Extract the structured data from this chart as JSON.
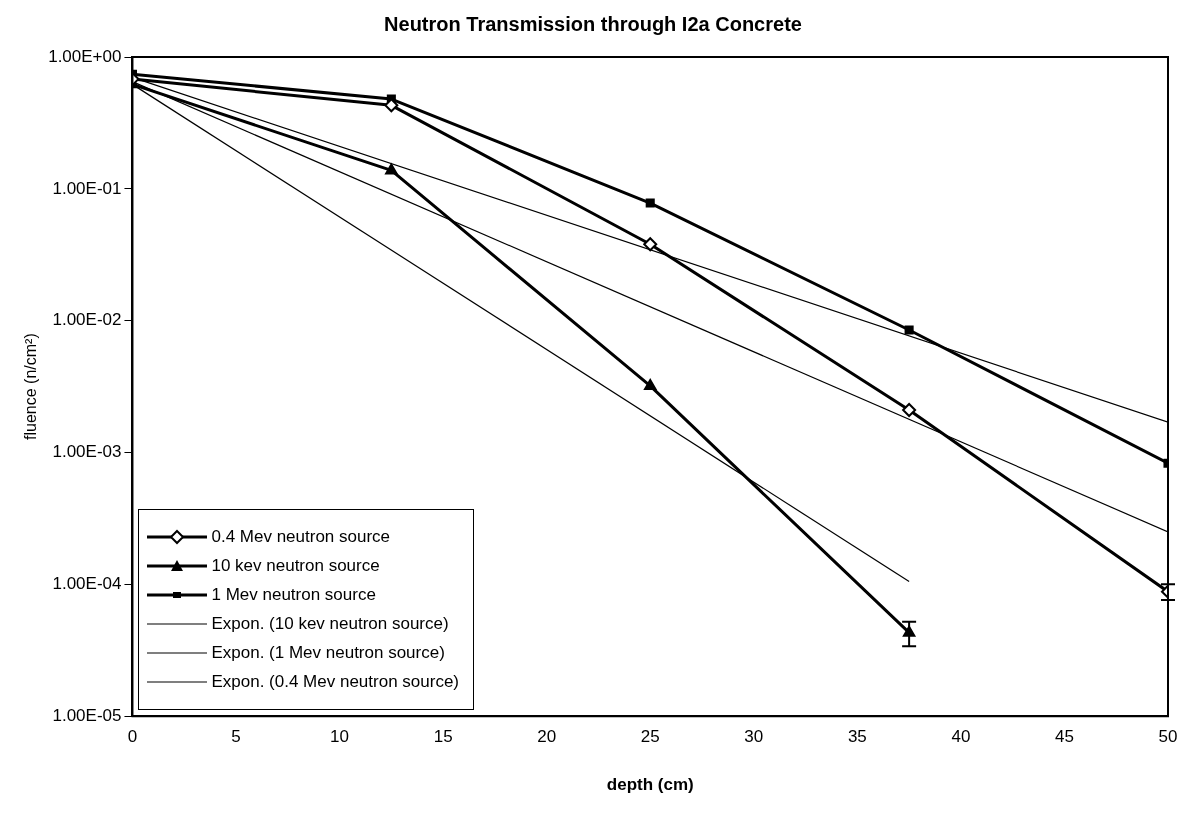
{
  "chart_data": {
    "type": "line",
    "title": "Neutron Transmission through I2a Concrete",
    "xlabel": "depth (cm)",
    "ylabel": "fluence (n/cm²)",
    "x": [
      0,
      12.5,
      25,
      37.5,
      50
    ],
    "log": "y",
    "xlim": [
      0,
      50
    ],
    "xticks": [
      0,
      5,
      10,
      15,
      20,
      25,
      30,
      35,
      40,
      45,
      50
    ],
    "ylim": [
      1e-05,
      1
    ],
    "yticks": [
      {
        "value": 1e-05,
        "label": "1.00E-05"
      },
      {
        "value": 0.0001,
        "label": "1.00E-04"
      },
      {
        "value": 0.001,
        "label": "1.00E-03"
      },
      {
        "value": 0.01,
        "label": "1.00E-02"
      },
      {
        "value": 0.1,
        "label": "1.00E-01"
      },
      {
        "value": 1,
        "label": "1.00E+00"
      }
    ],
    "grid": false,
    "legend": "bottom left",
    "series": [
      {
        "name": "0.4 Mev neutron source",
        "color": "#000000",
        "marker": "diamond",
        "values": [
          0.68,
          0.43,
          0.038,
          0.0021,
          8.8e-05
        ],
        "errors": [
          null,
          null,
          null,
          null,
          1.2e-05
        ]
      },
      {
        "name": "10 kev neutron source",
        "color": "#000000",
        "marker": "triangle",
        "values": [
          0.62,
          0.138,
          0.0032,
          4.3e-05
        ],
        "x": [
          0,
          12.5,
          25,
          37.5
        ],
        "errors": [
          null,
          null,
          null,
          9e-06
        ]
      },
      {
        "name": "1 Mev neutron source",
        "color": "#000000",
        "marker": "square",
        "values": [
          0.74,
          0.48,
          0.078,
          0.0085,
          0.00083
        ]
      },
      {
        "name": "Expon. (10 kev neutron source)",
        "color": "#000000",
        "marker": "none",
        "x": [
          0,
          37.5
        ],
        "values": [
          0.62,
          0.000105
        ]
      },
      {
        "name": "Expon. (1 Mev neutron source)",
        "color": "#000000",
        "marker": "none",
        "x": [
          0,
          50
        ],
        "values": [
          0.7,
          0.0017
        ]
      },
      {
        "name": "Expon. (0.4 Mev neutron source)",
        "color": "#000000",
        "marker": "none",
        "x": [
          0,
          50
        ],
        "values": [
          0.65,
          0.00025
        ]
      }
    ]
  }
}
